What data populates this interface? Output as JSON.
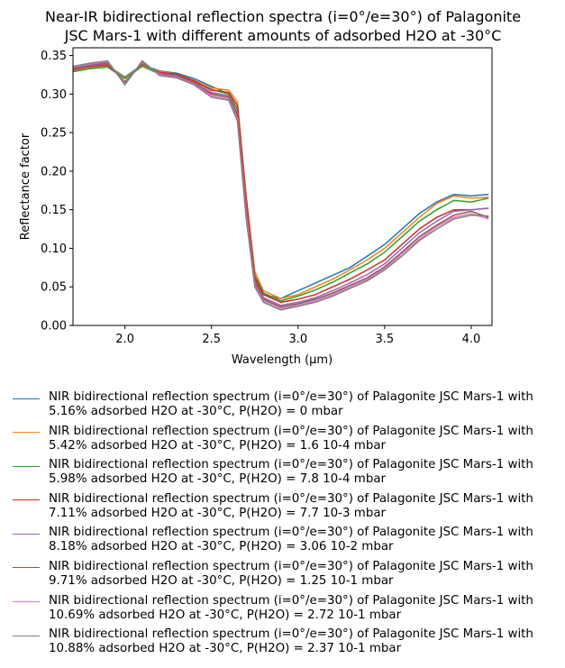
{
  "chart_data": {
    "type": "line",
    "title": "Near-IR bidirectional reflection spectra (i=0°/e=30°) of Palagonite\nJSC Mars-1 with different amounts of adsorbed H2O at -30°C",
    "title_lines": [
      "Near-IR bidirectional reflection spectra (i=0°/e=30°) of Palagonite",
      "JSC Mars-1 with different amounts of adsorbed H2O at -30°C"
    ],
    "xlabel": "Wavelength (μm)",
    "ylabel": "Reflectance factor",
    "xlim": [
      1.7,
      4.12
    ],
    "ylim": [
      0.0,
      0.36
    ],
    "xticks": [
      2.0,
      2.5,
      3.0,
      3.5,
      4.0
    ],
    "xtick_labels": [
      "2.0",
      "2.5",
      "3.0",
      "3.5",
      "4.0"
    ],
    "yticks": [
      0.0,
      0.05,
      0.1,
      0.15,
      0.2,
      0.25,
      0.3,
      0.35
    ],
    "ytick_labels": [
      "0.00",
      "0.05",
      "0.10",
      "0.15",
      "0.20",
      "0.25",
      "0.30",
      "0.35"
    ],
    "grid": false,
    "legend_position": "below",
    "x": [
      1.7,
      1.8,
      1.9,
      2.0,
      2.1,
      2.2,
      2.3,
      2.4,
      2.5,
      2.6,
      2.65,
      2.7,
      2.75,
      2.8,
      2.9,
      3.0,
      3.1,
      3.2,
      3.3,
      3.4,
      3.5,
      3.6,
      3.7,
      3.8,
      3.9,
      4.0,
      4.1
    ],
    "series": [
      {
        "name": "NIR bidirectional reflection spectrum (i=0°/e=30°) of Palagonite JSC Mars-1 with\n5.16% adsorbed H2O at -30°C, P(H2O) = 0 mbar",
        "color": "#1f77b4",
        "values": [
          0.331,
          0.335,
          0.337,
          0.322,
          0.338,
          0.33,
          0.327,
          0.32,
          0.31,
          0.3,
          0.27,
          0.15,
          0.06,
          0.04,
          0.035,
          0.045,
          0.055,
          0.065,
          0.075,
          0.09,
          0.105,
          0.125,
          0.145,
          0.16,
          0.17,
          0.168,
          0.17
        ]
      },
      {
        "name": "NIR bidirectional reflection spectrum (i=0°/e=30°) of Palagonite JSC Mars-1 with\n5.42% adsorbed H2O at -30°C, P(H2O) = 1.6 10-4 mbar",
        "color": "#ff7f0e",
        "values": [
          0.33,
          0.334,
          0.336,
          0.321,
          0.337,
          0.329,
          0.326,
          0.318,
          0.308,
          0.305,
          0.29,
          0.17,
          0.07,
          0.045,
          0.035,
          0.04,
          0.05,
          0.06,
          0.072,
          0.085,
          0.1,
          0.12,
          0.14,
          0.158,
          0.168,
          0.165,
          0.166
        ]
      },
      {
        "name": "NIR bidirectional reflection spectrum (i=0°/e=30°) of Palagonite JSC Mars-1 with\n5.98% adsorbed H2O at -30°C, P(H2O) = 7.8 10-4 mbar",
        "color": "#2ca02c",
        "values": [
          0.329,
          0.333,
          0.335,
          0.32,
          0.336,
          0.326,
          0.325,
          0.316,
          0.306,
          0.3,
          0.28,
          0.16,
          0.065,
          0.042,
          0.032,
          0.038,
          0.046,
          0.056,
          0.068,
          0.08,
          0.095,
          0.115,
          0.135,
          0.15,
          0.162,
          0.16,
          0.165
        ]
      },
      {
        "name": "NIR bidirectional reflection spectrum (i=0°/e=30°) of Palagonite JSC Mars-1 with\n7.11% adsorbed H2O at -30°C, P(H2O) = 7.7 10-3 mbar",
        "color": "#d62728",
        "values": [
          0.332,
          0.336,
          0.338,
          0.316,
          0.339,
          0.328,
          0.326,
          0.317,
          0.305,
          0.302,
          0.285,
          0.165,
          0.062,
          0.04,
          0.03,
          0.034,
          0.04,
          0.05,
          0.06,
          0.072,
          0.085,
          0.105,
          0.125,
          0.14,
          0.15,
          0.15,
          0.152
        ]
      },
      {
        "name": "NIR bidirectional reflection spectrum (i=0°/e=30°) of Palagonite JSC Mars-1 with\n8.18% adsorbed H2O at -30°C, P(H2O) = 3.06 10-2 mbar",
        "color": "#9467bd",
        "values": [
          0.333,
          0.337,
          0.34,
          0.315,
          0.34,
          0.327,
          0.324,
          0.315,
          0.302,
          0.298,
          0.275,
          0.155,
          0.058,
          0.036,
          0.026,
          0.03,
          0.036,
          0.045,
          0.055,
          0.066,
          0.08,
          0.1,
          0.12,
          0.135,
          0.148,
          0.15,
          0.152
        ]
      },
      {
        "name": "NIR bidirectional reflection spectrum (i=0°/e=30°) of Palagonite JSC Mars-1 with\n9.71% adsorbed H2O at -30°C, P(H2O) = 1.25 10-1 mbar",
        "color": "#8c564b",
        "values": [
          0.334,
          0.338,
          0.341,
          0.314,
          0.341,
          0.326,
          0.323,
          0.314,
          0.3,
          0.296,
          0.272,
          0.15,
          0.055,
          0.034,
          0.024,
          0.028,
          0.034,
          0.042,
          0.052,
          0.062,
          0.076,
          0.095,
          0.115,
          0.13,
          0.143,
          0.148,
          0.14
        ]
      },
      {
        "name": "NIR bidirectional reflection spectrum (i=0°/e=30°) of Palagonite JSC Mars-1 with\n10.69% adsorbed H2O at -30°C, P(H2O) = 2.72 10-1 mbar",
        "color": "#e377c2",
        "values": [
          0.335,
          0.339,
          0.342,
          0.313,
          0.342,
          0.325,
          0.322,
          0.313,
          0.298,
          0.294,
          0.268,
          0.145,
          0.052,
          0.032,
          0.022,
          0.026,
          0.032,
          0.04,
          0.05,
          0.06,
          0.074,
          0.093,
          0.112,
          0.128,
          0.14,
          0.145,
          0.138
        ]
      },
      {
        "name": "NIR bidirectional reflection spectrum (i=0°/e=30°) of Palagonite JSC Mars-1 with\n10.88% adsorbed H2O at -30°C, P(H2O) = 2.37 10-1 mbar",
        "color": "#7f7f7f",
        "values": [
          0.336,
          0.34,
          0.343,
          0.312,
          0.343,
          0.324,
          0.321,
          0.312,
          0.296,
          0.292,
          0.265,
          0.14,
          0.05,
          0.03,
          0.02,
          0.025,
          0.03,
          0.038,
          0.048,
          0.058,
          0.072,
          0.09,
          0.11,
          0.125,
          0.138,
          0.143,
          0.142
        ]
      }
    ]
  }
}
